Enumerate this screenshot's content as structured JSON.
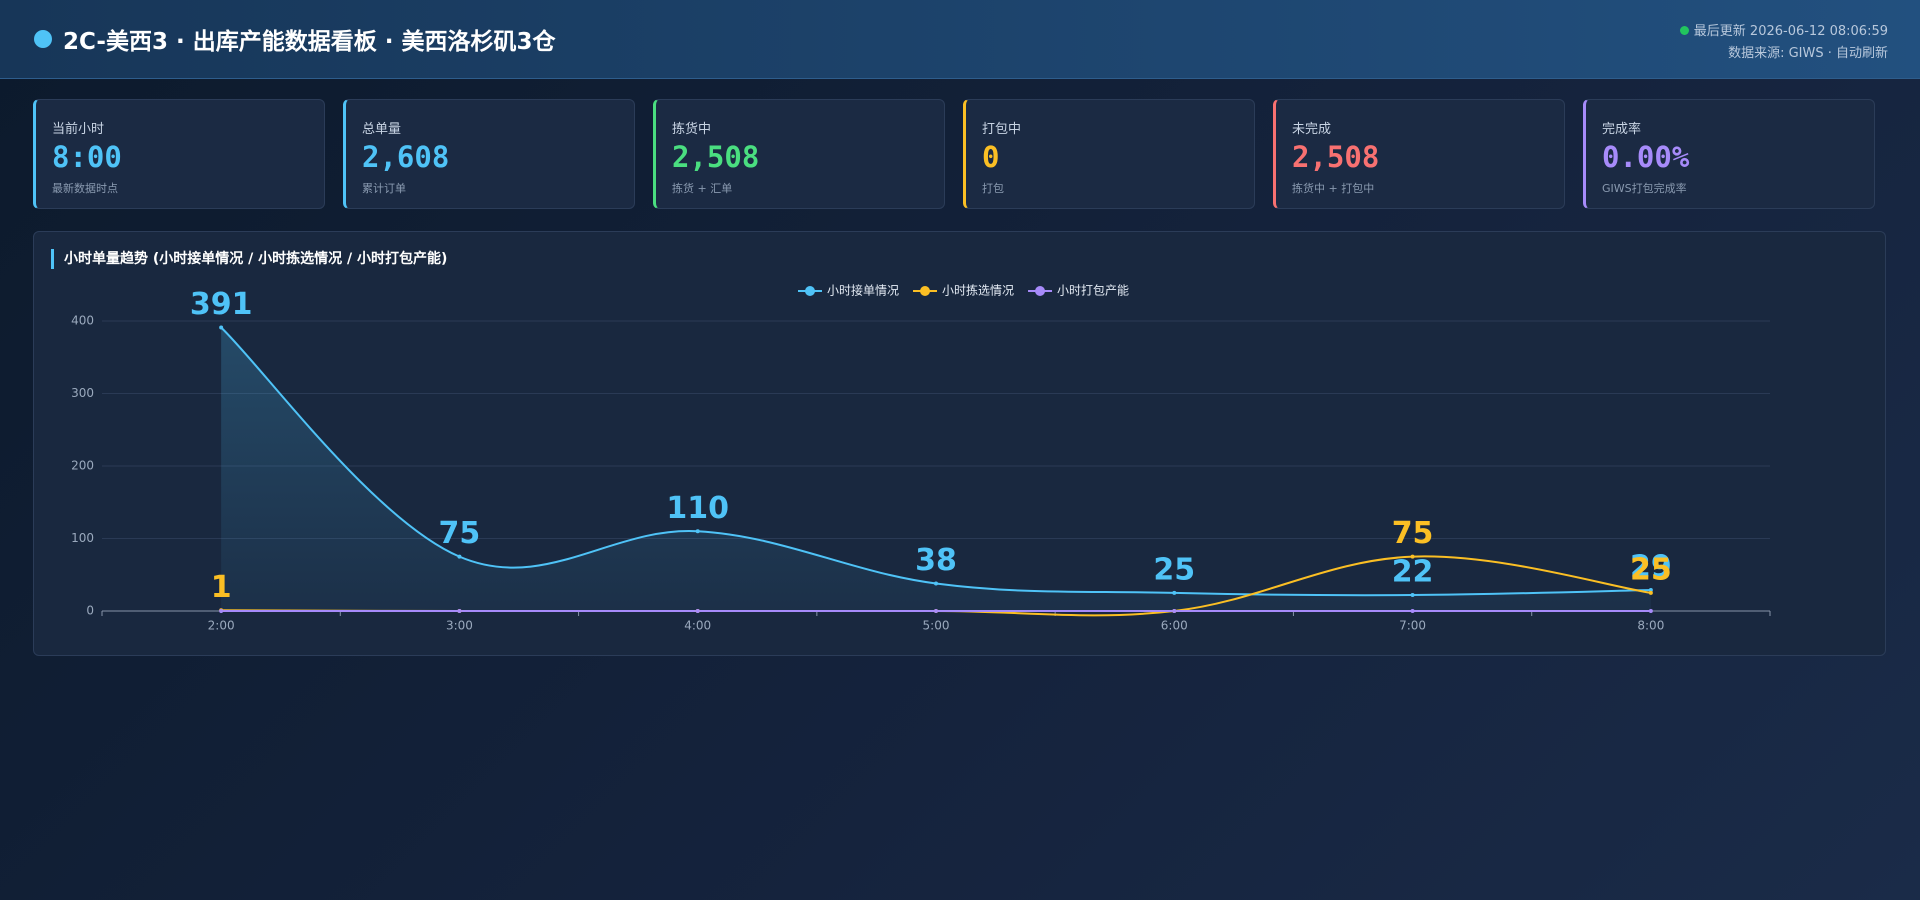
{
  "header": {
    "title": "2C-美西3 · 出库产能数据看板 · 美西洛杉矶3仓",
    "updated": "最后更新 2026-06-12 08:06:59",
    "source": "数据来源: GIWS · 自动刷新"
  },
  "cards": [
    {
      "label": "当前小时",
      "value": "8:00",
      "sub": "最新数据时点",
      "color": "#4fc3f7"
    },
    {
      "label": "总单量",
      "value": "2,608",
      "sub": "累计订单",
      "color": "#4fc3f7"
    },
    {
      "label": "拣货中",
      "value": "2,508",
      "sub": "拣货 + 汇单",
      "color": "#4ade80"
    },
    {
      "label": "打包中",
      "value": "0",
      "sub": "打包",
      "color": "#fbbf24"
    },
    {
      "label": "未完成",
      "value": "2,508",
      "sub": "拣货中 + 打包中",
      "color": "#f87171"
    },
    {
      "label": "完成率",
      "value": "0.00%",
      "sub": "GIWS打包完成率",
      "color": "#a78bfa"
    }
  ],
  "chart_data": {
    "type": "line",
    "title": "小时单量趋势 (小时接单情况 / 小时拣选情况 / 小时打包产能)",
    "categories": [
      "2:00",
      "3:00",
      "4:00",
      "5:00",
      "6:00",
      "7:00",
      "8:00"
    ],
    "series": [
      {
        "name": "小时接单情况",
        "color": "#4fc3f7",
        "area": true,
        "values": [
          391,
          75,
          110,
          38,
          25,
          22,
          29
        ]
      },
      {
        "name": "小时拣选情况",
        "color": "#fbbf24",
        "area": false,
        "values": [
          1,
          0,
          0,
          0,
          0,
          75,
          25
        ]
      },
      {
        "name": "小时打包产能",
        "color": "#a78bfa",
        "area": false,
        "values": [
          0,
          0,
          0,
          0,
          0,
          0,
          0
        ]
      }
    ],
    "ylim": [
      0,
      400
    ],
    "yticks": [
      0,
      100,
      200,
      300,
      400
    ],
    "grid": true,
    "legend": "top"
  }
}
